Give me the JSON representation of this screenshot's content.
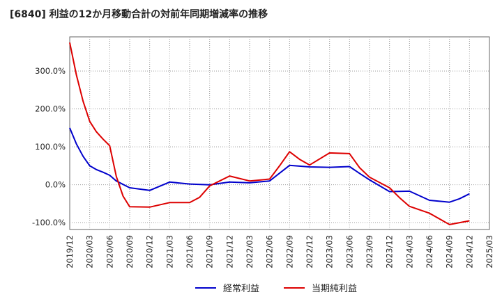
{
  "chart_data": {
    "type": "line",
    "title": "[6840]  利益の12か月移動合計の対前年同期増減率の推移",
    "xlabel": "",
    "ylabel": "",
    "x_ticks": [
      "2019/12",
      "2020/03",
      "2020/06",
      "2020/09",
      "2020/12",
      "2021/03",
      "2021/06",
      "2021/09",
      "2021/12",
      "2022/03",
      "2022/06",
      "2022/09",
      "2022/12",
      "2023/03",
      "2023/06",
      "2023/09",
      "2023/12",
      "2024/03",
      "2024/06",
      "2024/09",
      "2024/12",
      "2025/03"
    ],
    "y_ticks": [
      {
        "value": 300,
        "label": "300.0%"
      },
      {
        "value": 200,
        "label": "200.0%"
      },
      {
        "value": 100,
        "label": "100.0%"
      },
      {
        "value": 0,
        "label": "0.0%"
      },
      {
        "value": -100,
        "label": "-100.0%"
      }
    ],
    "ylim": [
      -118,
      390
    ],
    "xlim": [
      0,
      21
    ],
    "series": [
      {
        "name": "経常利益",
        "color": "#0000cc",
        "points": [
          [
            0,
            150
          ],
          [
            0.33,
            108
          ],
          [
            0.67,
            75
          ],
          [
            1,
            50
          ],
          [
            1.33,
            40
          ],
          [
            1.67,
            33
          ],
          [
            2,
            25
          ],
          [
            2.33,
            10
          ],
          [
            3,
            -8
          ],
          [
            4,
            -15
          ],
          [
            5,
            7
          ],
          [
            6,
            2
          ],
          [
            7,
            0
          ],
          [
            8,
            7
          ],
          [
            9,
            5
          ],
          [
            10,
            10
          ],
          [
            11,
            51
          ],
          [
            12,
            47
          ],
          [
            13,
            46
          ],
          [
            14,
            48
          ],
          [
            14.5,
            30
          ],
          [
            15,
            13
          ],
          [
            16,
            -18
          ],
          [
            17,
            -17
          ],
          [
            18,
            -41
          ],
          [
            19,
            -46
          ],
          [
            19.5,
            -37
          ],
          [
            20,
            -24
          ]
        ]
      },
      {
        "name": "当期純利益",
        "color": "#dd0000",
        "points": [
          [
            0,
            375
          ],
          [
            0.33,
            290
          ],
          [
            0.67,
            220
          ],
          [
            1,
            167
          ],
          [
            1.33,
            140
          ],
          [
            1.67,
            120
          ],
          [
            2,
            103
          ],
          [
            2.33,
            22
          ],
          [
            2.67,
            -30
          ],
          [
            3,
            -58
          ],
          [
            4,
            -59
          ],
          [
            5,
            -47
          ],
          [
            6,
            -47
          ],
          [
            6.5,
            -33
          ],
          [
            7,
            -3
          ],
          [
            8,
            23
          ],
          [
            9,
            10
          ],
          [
            10,
            15
          ],
          [
            10.5,
            50
          ],
          [
            11,
            87
          ],
          [
            11.5,
            67
          ],
          [
            12,
            52
          ],
          [
            13,
            84
          ],
          [
            14,
            82
          ],
          [
            14.5,
            45
          ],
          [
            15,
            20
          ],
          [
            16,
            -8
          ],
          [
            16.5,
            -34
          ],
          [
            17,
            -57
          ],
          [
            18,
            -75
          ],
          [
            19,
            -105
          ],
          [
            20,
            -95
          ]
        ]
      }
    ]
  }
}
